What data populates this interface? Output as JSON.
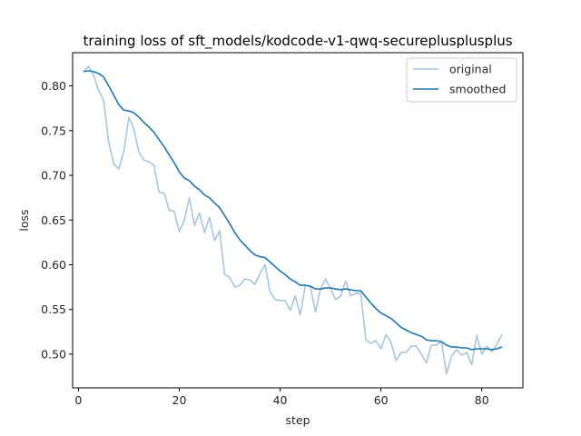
{
  "chart_data": {
    "type": "line",
    "title": "training loss of sft_models/kodcode-v1-qwq-secureplusplusplus",
    "xlabel": "step",
    "ylabel": "loss",
    "xlim": [
      -1.15,
      88.15
    ],
    "ylim": [
      0.4623,
      0.8372
    ],
    "xticks": [
      0,
      20,
      40,
      60,
      80
    ],
    "yticks": [
      0.5,
      0.55,
      0.6,
      0.65,
      0.7,
      0.75,
      0.8
    ],
    "ytick_labels": [
      "0.50",
      "0.55",
      "0.60",
      "0.65",
      "0.70",
      "0.75",
      "0.80"
    ],
    "legend_position": "top-right",
    "grid": false,
    "x": [
      1,
      2,
      3,
      4,
      5,
      6,
      7,
      8,
      9,
      10,
      11,
      12,
      13,
      14,
      15,
      16,
      17,
      18,
      19,
      20,
      21,
      22,
      23,
      24,
      25,
      26,
      27,
      28,
      29,
      30,
      31,
      32,
      33,
      34,
      35,
      36,
      37,
      38,
      39,
      40,
      41,
      42,
      43,
      44,
      45,
      46,
      47,
      48,
      49,
      50,
      51,
      52,
      53,
      54,
      55,
      56,
      57,
      58,
      59,
      60,
      61,
      62,
      63,
      64,
      65,
      66,
      67,
      68,
      69,
      70,
      71,
      72,
      73,
      74,
      75,
      76,
      77,
      78,
      79,
      80,
      81,
      82,
      83,
      84
    ],
    "series": [
      {
        "name": "original",
        "color": "#a6c6de",
        "values": [
          0.816,
          0.822,
          0.812,
          0.795,
          0.784,
          0.737,
          0.713,
          0.707,
          0.727,
          0.765,
          0.752,
          0.726,
          0.717,
          0.715,
          0.711,
          0.681,
          0.68,
          0.661,
          0.66,
          0.637,
          0.65,
          0.675,
          0.644,
          0.658,
          0.636,
          0.653,
          0.627,
          0.638,
          0.589,
          0.586,
          0.575,
          0.577,
          0.584,
          0.583,
          0.578,
          0.59,
          0.6,
          0.57,
          0.561,
          0.56,
          0.56,
          0.549,
          0.565,
          0.544,
          0.577,
          0.576,
          0.547,
          0.573,
          0.584,
          0.573,
          0.561,
          0.565,
          0.582,
          0.565,
          0.568,
          0.568,
          0.516,
          0.512,
          0.515,
          0.506,
          0.522,
          0.513,
          0.493,
          0.502,
          0.502,
          0.509,
          0.509,
          0.5,
          0.49,
          0.51,
          0.51,
          0.514,
          0.478,
          0.498,
          0.505,
          0.499,
          0.502,
          0.488,
          0.521,
          0.5,
          0.509,
          0.503,
          0.511,
          0.522
        ]
      },
      {
        "name": "smoothed",
        "color": "#1f77b4",
        "values": [
          0.816,
          0.817,
          0.816,
          0.814,
          0.81,
          0.8,
          0.79,
          0.779,
          0.773,
          0.772,
          0.77,
          0.765,
          0.759,
          0.754,
          0.748,
          0.74,
          0.732,
          0.723,
          0.714,
          0.704,
          0.697,
          0.694,
          0.688,
          0.684,
          0.678,
          0.675,
          0.669,
          0.664,
          0.655,
          0.646,
          0.636,
          0.628,
          0.622,
          0.616,
          0.611,
          0.609,
          0.608,
          0.603,
          0.598,
          0.593,
          0.589,
          0.584,
          0.581,
          0.577,
          0.577,
          0.576,
          0.573,
          0.573,
          0.574,
          0.574,
          0.573,
          0.572,
          0.573,
          0.572,
          0.571,
          0.571,
          0.564,
          0.557,
          0.551,
          0.546,
          0.543,
          0.54,
          0.535,
          0.53,
          0.527,
          0.524,
          0.522,
          0.52,
          0.516,
          0.515,
          0.515,
          0.514,
          0.51,
          0.508,
          0.508,
          0.507,
          0.507,
          0.505,
          0.506,
          0.506,
          0.506,
          0.505,
          0.506,
          0.508
        ]
      }
    ]
  }
}
